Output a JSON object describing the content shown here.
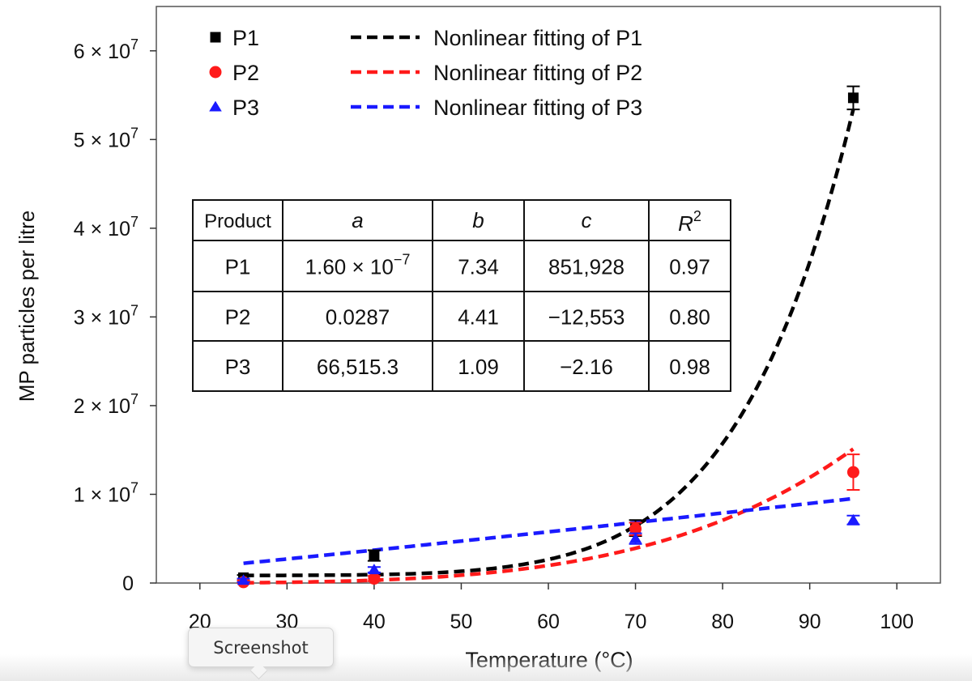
{
  "chart_data": {
    "type": "scatter",
    "xlabel": "Temperature (°C)",
    "ylabel": "MP particles per litre",
    "xlim": [
      15,
      105
    ],
    "ylim": [
      0,
      65000000
    ],
    "xticks": [
      20,
      30,
      40,
      50,
      60,
      70,
      80,
      90,
      100
    ],
    "yticks": [
      {
        "value": 0,
        "label": "0"
      },
      {
        "value": 10000000,
        "mant": "1 × 10",
        "exp": "7"
      },
      {
        "value": 20000000,
        "mant": "2 × 10",
        "exp": "7"
      },
      {
        "value": 30000000,
        "mant": "3 × 10",
        "exp": "7"
      },
      {
        "value": 40000000,
        "mant": "4 × 10",
        "exp": "7"
      },
      {
        "value": 50000000,
        "mant": "5 × 10",
        "exp": "7"
      },
      {
        "value": 60000000,
        "mant": "6 × 10",
        "exp": "7"
      }
    ],
    "series": [
      {
        "name": "P1",
        "marker": "square",
        "color": "#000000",
        "x": [
          25,
          40,
          70,
          95
        ],
        "y": [
          600000,
          3100000,
          6200000,
          54700000
        ],
        "err": [
          300000,
          600000,
          900000,
          1300000
        ]
      },
      {
        "name": "P2",
        "marker": "circle",
        "color": "#ff1a1a",
        "x": [
          25,
          40,
          70,
          95
        ],
        "y": [
          100000,
          500000,
          6100000,
          12500000
        ],
        "err": [
          200000,
          300000,
          700000,
          2000000
        ]
      },
      {
        "name": "P3",
        "marker": "triangle",
        "color": "#1a1aff",
        "x": [
          25,
          40,
          70,
          95
        ],
        "y": [
          300000,
          1500000,
          5000000,
          7100000
        ],
        "err": [
          200000,
          300000,
          600000,
          500000
        ]
      }
    ],
    "fits": [
      {
        "name": "Nonlinear fitting of P1",
        "color": "#000000",
        "a": 1.6e-07,
        "b": 7.34,
        "c": 851928
      },
      {
        "name": "Nonlinear fitting of P2",
        "color": "#ff1a1a",
        "a": 0.0287,
        "b": 4.41,
        "c": -12553
      },
      {
        "name": "Nonlinear fitting of P3",
        "color": "#1a1aff",
        "a": 66515.3,
        "b": 1.09,
        "c": -2.16
      }
    ],
    "fit_range": [
      25,
      95
    ],
    "legend_position": "top-left",
    "table": {
      "headers": [
        "Product",
        "a",
        "b",
        "c",
        "R",
        "2"
      ],
      "rows": [
        {
          "product": "P1",
          "a_mant": "1.60 × 10",
          "a_exp": "−7",
          "b": "7.34",
          "c": "851,928",
          "r2": "0.97"
        },
        {
          "product": "P2",
          "a": "0.0287",
          "b": "4.41",
          "c": "−12,553",
          "r2": "0.80"
        },
        {
          "product": "P3",
          "a": "66,515.3",
          "b": "1.09",
          "c": "−2.16",
          "r2": "0.98"
        }
      ]
    }
  },
  "tooltip": {
    "label": "Screenshot"
  }
}
